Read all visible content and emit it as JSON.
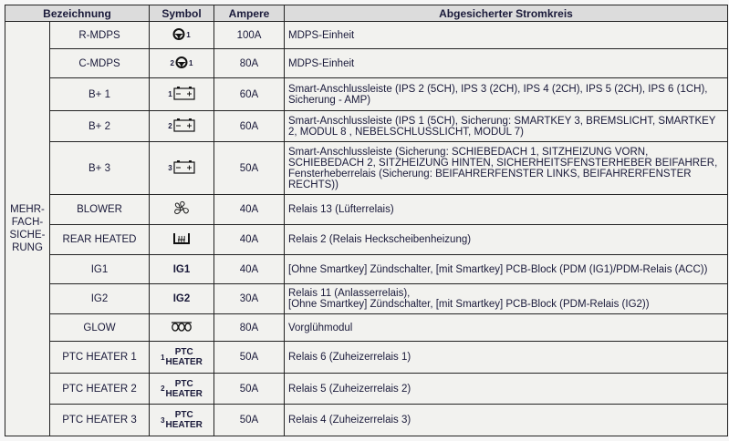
{
  "headers": [
    "Bezeichnung",
    "Symbol",
    "Ampere",
    "Abgesicherter Stromkreis"
  ],
  "group_label": [
    "MEHR-",
    "FACH-",
    "SICHE-",
    "RUNG"
  ],
  "rows": [
    {
      "name": "R-MDPS",
      "icon": "steering-wheel-icon",
      "pre": "",
      "post": "1",
      "ampere": "100A",
      "circuit": [
        "MDPS-Einheit"
      ]
    },
    {
      "name": "C-MDPS",
      "icon": "steering-wheel-icon",
      "pre": "2",
      "post": "1",
      "ampere": "80A",
      "circuit": [
        "MDPS-Einheit"
      ]
    },
    {
      "name": "B+ 1",
      "icon": "battery-icon",
      "pre": "1",
      "post": "",
      "ampere": "60A",
      "circuit": [
        "Smart-Anschlussleiste (IPS 2 (5CH), IPS 3 (2CH), IPS 4 (2CH), IPS 5 (2CH), IPS 6 (1CH), Sicherung - AMP)"
      ]
    },
    {
      "name": "B+ 2",
      "icon": "battery-icon",
      "pre": "2",
      "post": "",
      "ampere": "60A",
      "circuit": [
        "Smart-Anschlussleiste (IPS 1 (5CH), Sicherung: SMARTKEY 3, BREMSLICHT, SMARTKEY 2, MODUL 8 , NEBELSCHLUSSLICHT, MODUL 7)"
      ]
    },
    {
      "name": "B+ 3",
      "icon": "battery-icon",
      "pre": "3",
      "post": "",
      "ampere": "50A",
      "circuit": [
        "Smart-Anschlussleiste (Sicherung: SCHIEBEDACH 1, SITZHEIZUNG VORN, SCHIEBEDACH 2, SITZHEIZUNG HINTEN, SICHERHEITSFENSTERHEBER BEIFAHRER, Fensterheberrelais (Sicherung: BEIFAHRERFENSTER LINKS, BEIFAHRERFENSTER RECHTS))"
      ]
    },
    {
      "name": "BLOWER",
      "icon": "fan-icon",
      "pre": "",
      "post": "",
      "ampere": "40A",
      "circuit": [
        "Relais 13 (Lüfterrelais)"
      ]
    },
    {
      "name": "REAR HEATED",
      "icon": "rear-defroster-icon",
      "pre": "",
      "post": "",
      "ampere": "40A",
      "circuit": [
        "Relais 2 (Relais Heckscheibenheizung)"
      ]
    },
    {
      "name": "IG1",
      "icon": "text",
      "symbol_text": "IG1",
      "pre": "",
      "post": "",
      "ampere": "40A",
      "circuit": [
        "[Ohne Smartkey] Zündschalter, [mit Smartkey] PCB-Block (PDM (IG1)/PDM-Relais (ACC))"
      ]
    },
    {
      "name": "IG2",
      "icon": "text",
      "symbol_text": "IG2",
      "pre": "",
      "post": "",
      "ampere": "30A",
      "circuit": [
        "Relais 11 (Anlasserrelais),",
        "[Ohne Smartkey] Zündschalter, [mit Smartkey] PCB-Block (PDM-Relais (IG2))"
      ]
    },
    {
      "name": "GLOW",
      "icon": "glow-plug-icon",
      "pre": "",
      "post": "",
      "ampere": "80A",
      "circuit": [
        "Vorglühmodul"
      ]
    },
    {
      "name": "PTC HEATER 1",
      "icon": "ptc",
      "symbol_text": [
        "PTC",
        "HEATER"
      ],
      "pre": "1",
      "post": "",
      "ampere": "50A",
      "circuit": [
        "Relais 6 (Zuheizerrelais 1)"
      ]
    },
    {
      "name": "PTC HEATER 2",
      "icon": "ptc",
      "symbol_text": [
        "PTC",
        "HEATER"
      ],
      "pre": "2",
      "post": "",
      "ampere": "50A",
      "circuit": [
        "Relais 5 (Zuheizerrelais 2)"
      ]
    },
    {
      "name": "PTC HEATER 3",
      "icon": "ptc",
      "symbol_text": [
        "PTC",
        "HEATER"
      ],
      "pre": "3",
      "post": "",
      "ampere": "50A",
      "circuit": [
        "Relais 4 (Zuheizerrelais 3)"
      ]
    }
  ]
}
